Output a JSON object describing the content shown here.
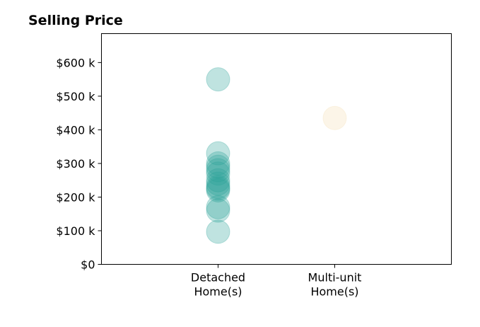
{
  "chart_data": {
    "type": "scatter",
    "title": "Selling Price",
    "categories": [
      "Detached\nHome(s)",
      "Multi-unit\nHome(s)"
    ],
    "y_ticks": [
      {
        "value": 0,
        "label": "$0"
      },
      {
        "value": 100000,
        "label": "$100 k"
      },
      {
        "value": 200000,
        "label": "$200 k"
      },
      {
        "value": 300000,
        "label": "$300 k"
      },
      {
        "value": 400000,
        "label": "$400 k"
      },
      {
        "value": 500000,
        "label": "$500 k"
      },
      {
        "value": 600000,
        "label": "$600 k"
      }
    ],
    "ylim": [
      0,
      686000
    ],
    "xlim": [
      0,
      3
    ],
    "grid": false,
    "series": [
      {
        "category": "Detached\nHome(s)",
        "x": 1,
        "color": "#2aa198",
        "values": [
          550000,
          330000,
          300000,
          290000,
          280000,
          270000,
          250000,
          240000,
          230000,
          225000,
          220000,
          170000,
          160000,
          97000
        ]
      },
      {
        "category": "Multi-unit\nHome(s)",
        "x": 2,
        "color": "#f5deb3",
        "values": [
          435000
        ]
      }
    ]
  }
}
